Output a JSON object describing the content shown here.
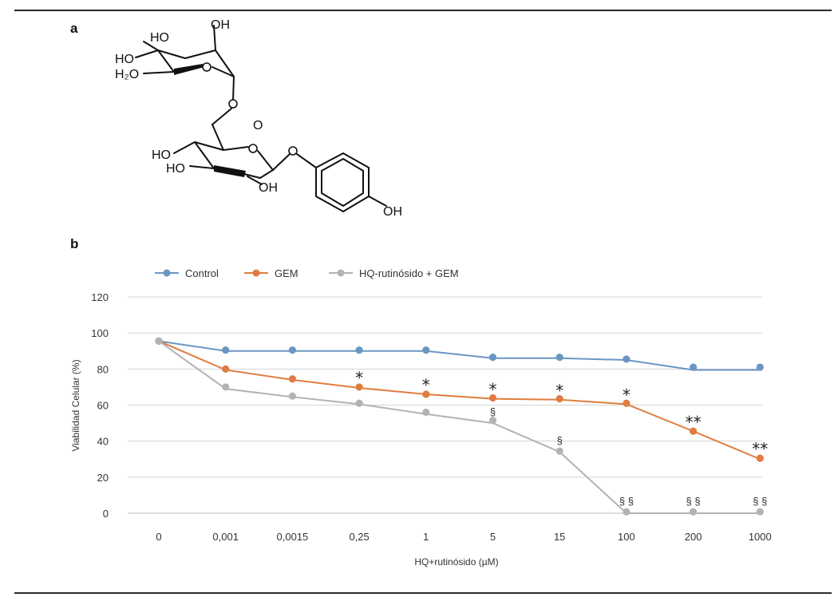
{
  "panel_a": {
    "letter": "a",
    "atom_labels": {
      "ho1": "HO",
      "oh1": "OH",
      "ho2": "HO",
      "h2o": "H₂O",
      "o_center": "O",
      "ho3": "HO",
      "ho4": "HO",
      "oh2": "OH",
      "oh3": "OH"
    }
  },
  "panel_b": {
    "letter": "b"
  },
  "colors": {
    "control": "#6b96c3",
    "gem": "#e07c3f",
    "hq": "#b3b3b3",
    "grid": "#d4d4d4"
  },
  "chart_data": {
    "type": "line",
    "categories": [
      "0",
      "0,001",
      "0,0015",
      "0,25",
      "1",
      "5",
      "15",
      "100",
      "200",
      "1000"
    ],
    "xlabel": "HQ+rutinósido (µM)",
    "ylabel": "Viabilidad Celular (%)",
    "ylim": [
      0,
      120
    ],
    "yticks": [
      "0",
      "20",
      "40",
      "60",
      "80",
      "100",
      "120"
    ],
    "grid": true,
    "legend_position": "top-left",
    "series": [
      {
        "name": "Control",
        "color": "#6b96c3",
        "points": [
          95.5,
          90.5,
          90.5,
          90.5,
          90.5,
          86.5,
          86.5,
          85.5,
          81,
          81
        ],
        "line": [
          95.5,
          90,
          90,
          90,
          90,
          86,
          86,
          85,
          79.5,
          79.5
        ]
      },
      {
        "name": "GEM",
        "color": "#e07c3f",
        "points": [
          95.5,
          80,
          74.5,
          70,
          66,
          64,
          63.5,
          61,
          45.5,
          30.5
        ],
        "line": [
          95.5,
          79.5,
          74,
          69.5,
          66,
          63.5,
          63,
          60.5,
          45.5,
          30
        ]
      },
      {
        "name": "HQ-rutinósido + GEM",
        "color": "#b3b3b3",
        "points": [
          95.5,
          70,
          65,
          61,
          56,
          51.5,
          34.5,
          0.8,
          0.8,
          0.8
        ],
        "line": [
          95.5,
          69,
          64.5,
          60.5,
          55,
          50,
          34,
          0,
          0,
          0
        ]
      }
    ],
    "annotations": [
      {
        "category": 3,
        "text": "*",
        "y": 75.5,
        "kind": "star"
      },
      {
        "category": 4,
        "text": "*",
        "y": 71.5,
        "kind": "star"
      },
      {
        "category": 5,
        "text": "*",
        "y": 69,
        "kind": "star"
      },
      {
        "category": 5,
        "text": "§",
        "y": 56,
        "kind": "section"
      },
      {
        "category": 6,
        "text": "*",
        "y": 68.5,
        "kind": "star"
      },
      {
        "category": 6,
        "text": "§",
        "y": 40,
        "kind": "section"
      },
      {
        "category": 7,
        "text": "*",
        "y": 66,
        "kind": "star"
      },
      {
        "category": 7,
        "text": "§ §",
        "y": 6.5,
        "kind": "section"
      },
      {
        "category": 8,
        "text": "**",
        "y": 51,
        "kind": "star"
      },
      {
        "category": 8,
        "text": "§ §",
        "y": 6.5,
        "kind": "section"
      },
      {
        "category": 9,
        "text": "**",
        "y": 36,
        "kind": "star"
      },
      {
        "category": 9,
        "text": "§ §",
        "y": 6.5,
        "kind": "section"
      }
    ]
  }
}
